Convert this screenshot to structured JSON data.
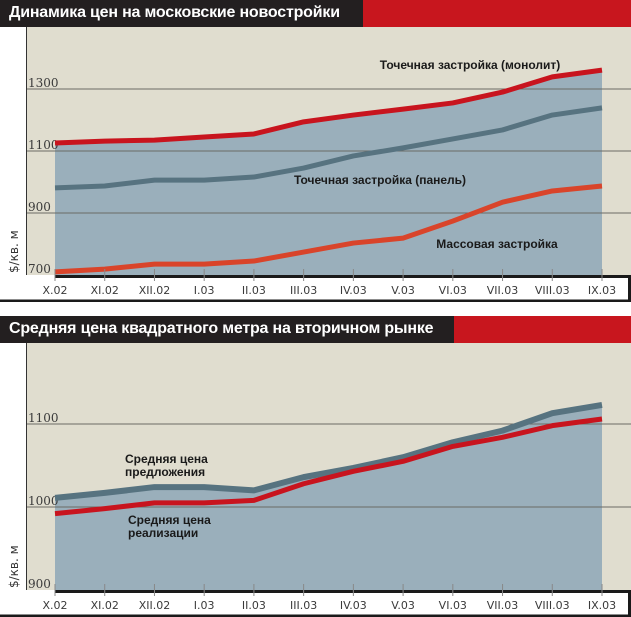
{
  "chart_data": [
    {
      "type": "area",
      "title": "Динамика цен на московские новостройки",
      "xlabel": "",
      "ylabel": "$/кв. м",
      "categories": [
        "X.02",
        "XI.02",
        "XII.02",
        "I.03",
        "II.03",
        "III.03",
        "IV.03",
        "V.03",
        "VI.03",
        "VII.03",
        "VIII.03",
        "IX.03"
      ],
      "yticks": [
        "700",
        "900",
        "1100",
        "1300"
      ],
      "ytick_values": [
        700,
        900,
        1100,
        1300
      ],
      "ylim": [
        700,
        1400
      ],
      "grid": true,
      "series": [
        {
          "name": "Точечная застройка (монолит)",
          "color": "#c8141e",
          "values": [
            1126,
            1132,
            1135,
            1145,
            1155,
            1194,
            1216,
            1235,
            1255,
            1290,
            1339,
            1361
          ]
        },
        {
          "name": "Точечная застройка (панель)",
          "color": "#577380",
          "values": [
            981,
            987,
            1006,
            1006,
            1016,
            1045,
            1084,
            1110,
            1139,
            1168,
            1216,
            1239
          ]
        },
        {
          "name": "Массовая застройка",
          "color": "#d9442a",
          "values": [
            710,
            719,
            735,
            735,
            745,
            774,
            803,
            819,
            874,
            935,
            971,
            987
          ]
        }
      ],
      "annotations": [
        "Точечная застройка (монолит)",
        "Точечная застройка (панель)",
        "Массовая застройка"
      ]
    },
    {
      "type": "area",
      "title": "Средняя цена квадратного метра на вторичном рынке",
      "xlabel": "",
      "ylabel": "$/кв. м",
      "categories": [
        "X.02",
        "XI.02",
        "XII.02",
        "I.03",
        "II.03",
        "III.03",
        "IV.03",
        "V.03",
        "VI.03",
        "VII.03",
        "VIII.03",
        "IX.03"
      ],
      "yticks": [
        "900",
        "1000",
        "1100"
      ],
      "ytick_values": [
        900,
        1000,
        1100
      ],
      "ylim": [
        900,
        1200
      ],
      "grid": true,
      "series": [
        {
          "name": "Средняя цена предложения",
          "color": "#577380",
          "values": [
            1011,
            1017,
            1024,
            1024,
            1020,
            1036,
            1047,
            1060,
            1078,
            1092,
            1113,
            1123
          ]
        },
        {
          "name": "Средняя цена реализации",
          "color": "#c8141e",
          "values": [
            992,
            998,
            1005,
            1005,
            1008,
            1028,
            1043,
            1055,
            1073,
            1084,
            1098,
            1106
          ]
        }
      ],
      "annotations": [
        [
          "Средняя цена",
          "предложения"
        ],
        [
          "Средняя цена",
          "реализации"
        ]
      ]
    }
  ],
  "colors": {
    "background": "#e0ddcf",
    "fill": "#9aafbb",
    "header_dark": "#231f20",
    "header_red": "#c8161e"
  }
}
